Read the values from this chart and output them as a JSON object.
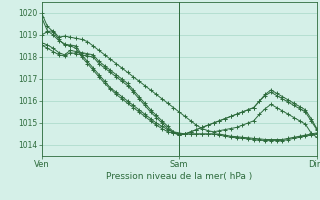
{
  "xlabel": "Pression niveau de la mer( hPa )",
  "background_color": "#d5f0e8",
  "grid_color": "#a8d8c8",
  "line_color": "#2d6b3c",
  "ylim": [
    1013.5,
    1020.5
  ],
  "yticks": [
    1014,
    1015,
    1016,
    1017,
    1018,
    1019,
    1020
  ],
  "xtick_labels": [
    "Ven",
    "Sam",
    "Dim"
  ],
  "xtick_positions": [
    0,
    48,
    96
  ],
  "n_points": 49,
  "series": [
    [
      1020.0,
      1019.4,
      1019.15,
      1018.8,
      1018.55,
      1018.55,
      1018.5,
      1018.1,
      1017.8,
      1017.5,
      1017.2,
      1016.9,
      1016.6,
      1016.4,
      1016.2,
      1016.0,
      1015.8,
      1015.6,
      1015.4,
      1015.2,
      1015.0,
      1014.85,
      1014.7,
      1014.6,
      1014.55,
      1014.5,
      1014.5,
      1014.5,
      1014.5,
      1014.5,
      1014.5,
      1014.5,
      1014.45,
      1014.4,
      1014.38,
      1014.35,
      1014.33,
      1014.3,
      1014.28,
      1014.25,
      1014.25,
      1014.25,
      1014.25,
      1014.3,
      1014.35,
      1014.4,
      1014.45,
      1014.5,
      1014.55
    ],
    [
      1019.8,
      1019.2,
      1019.0,
      1018.75,
      1018.6,
      1018.5,
      1018.4,
      1018.0,
      1017.7,
      1017.4,
      1017.1,
      1016.8,
      1016.55,
      1016.3,
      1016.1,
      1015.9,
      1015.7,
      1015.5,
      1015.3,
      1015.1,
      1014.9,
      1014.75,
      1014.6,
      1014.55,
      1014.5,
      1014.5,
      1014.5,
      1014.5,
      1014.5,
      1014.5,
      1014.5,
      1014.45,
      1014.4,
      1014.35,
      1014.33,
      1014.3,
      1014.28,
      1014.25,
      1014.22,
      1014.2,
      1014.2,
      1014.2,
      1014.2,
      1014.25,
      1014.3,
      1014.35,
      1014.4,
      1014.45,
      1014.5
    ],
    [
      1018.65,
      1018.55,
      1018.4,
      1018.2,
      1018.1,
      1018.3,
      1018.25,
      1018.2,
      1018.15,
      1018.1,
      1017.8,
      1017.6,
      1017.4,
      1017.2,
      1017.0,
      1016.8,
      1016.5,
      1016.2,
      1015.9,
      1015.6,
      1015.35,
      1015.1,
      1014.85,
      1014.6,
      1014.45,
      1014.5,
      1014.6,
      1014.7,
      1014.8,
      1014.9,
      1015.0,
      1015.1,
      1015.2,
      1015.3,
      1015.4,
      1015.5,
      1015.6,
      1015.7,
      1016.0,
      1016.3,
      1016.5,
      1016.35,
      1016.2,
      1016.05,
      1015.9,
      1015.75,
      1015.6,
      1015.2,
      1014.75
    ],
    [
      1018.55,
      1018.4,
      1018.25,
      1018.1,
      1018.05,
      1018.2,
      1018.15,
      1018.1,
      1018.05,
      1018.0,
      1017.7,
      1017.5,
      1017.3,
      1017.1,
      1016.9,
      1016.7,
      1016.4,
      1016.1,
      1015.8,
      1015.5,
      1015.25,
      1015.0,
      1014.75,
      1014.55,
      1014.45,
      1014.5,
      1014.6,
      1014.7,
      1014.8,
      1014.9,
      1015.0,
      1015.1,
      1015.2,
      1015.3,
      1015.4,
      1015.5,
      1015.6,
      1015.7,
      1016.0,
      1016.25,
      1016.4,
      1016.25,
      1016.1,
      1015.95,
      1015.8,
      1015.65,
      1015.5,
      1015.1,
      1014.7
    ],
    [
      1019.0,
      1019.15,
      1019.2,
      1018.9,
      1018.95,
      1018.9,
      1018.85,
      1018.8,
      1018.7,
      1018.5,
      1018.3,
      1018.1,
      1017.9,
      1017.7,
      1017.5,
      1017.3,
      1017.1,
      1016.9,
      1016.7,
      1016.5,
      1016.3,
      1016.1,
      1015.9,
      1015.7,
      1015.5,
      1015.3,
      1015.1,
      1014.9,
      1014.75,
      1014.65,
      1014.6,
      1014.65,
      1014.7,
      1014.75,
      1014.8,
      1014.9,
      1015.0,
      1015.1,
      1015.4,
      1015.65,
      1015.85,
      1015.7,
      1015.55,
      1015.4,
      1015.25,
      1015.1,
      1014.95,
      1014.55,
      1014.35
    ]
  ]
}
